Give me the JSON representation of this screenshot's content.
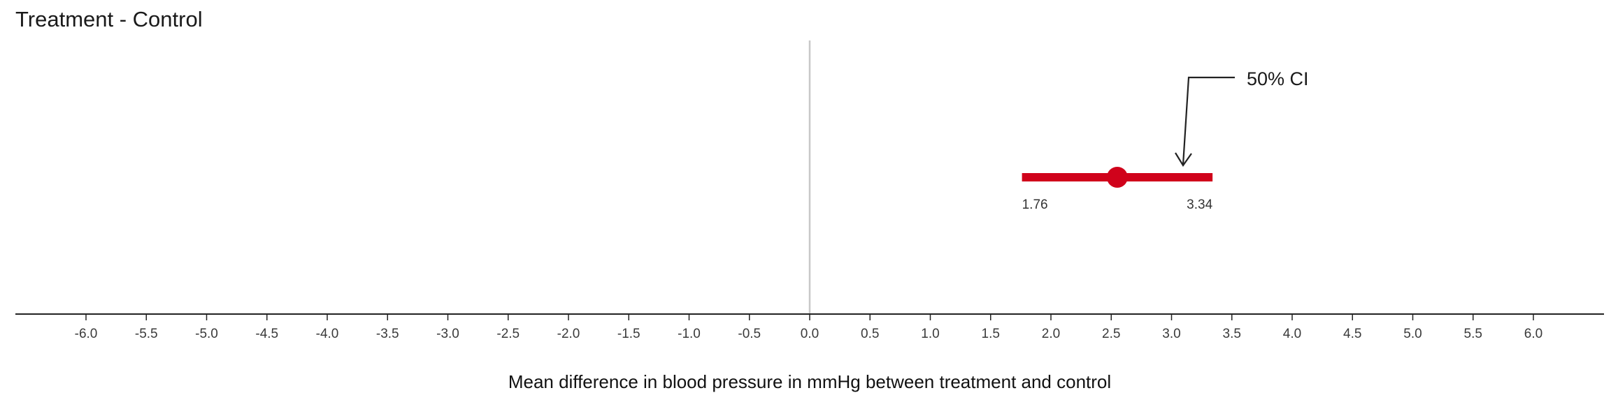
{
  "chart_data": {
    "type": "interval",
    "title": "Treatment - Control",
    "xlabel": "Mean difference in blood pressure in mmHg between treatment and control",
    "xlim": [
      -6.0,
      6.0
    ],
    "xticks": [
      "-6.0",
      "-5.5",
      "-5.0",
      "-4.5",
      "-4.0",
      "-3.5",
      "-3.0",
      "-2.5",
      "-2.0",
      "-1.5",
      "-1.0",
      "-0.5",
      "0.0",
      "0.5",
      "1.0",
      "1.5",
      "2.0",
      "2.5",
      "3.0",
      "3.5",
      "4.0",
      "4.5",
      "5.0",
      "5.5",
      "6.0"
    ],
    "reference_line": 0.0,
    "estimate": 2.55,
    "interval": {
      "lower": 1.76,
      "upper": 3.34,
      "lower_label": "1.76",
      "upper_label": "3.34",
      "label": "50% CI"
    },
    "colors": {
      "interval": "#d0021b",
      "reference_line": "#c8c8c8",
      "axis": "#222222"
    }
  }
}
